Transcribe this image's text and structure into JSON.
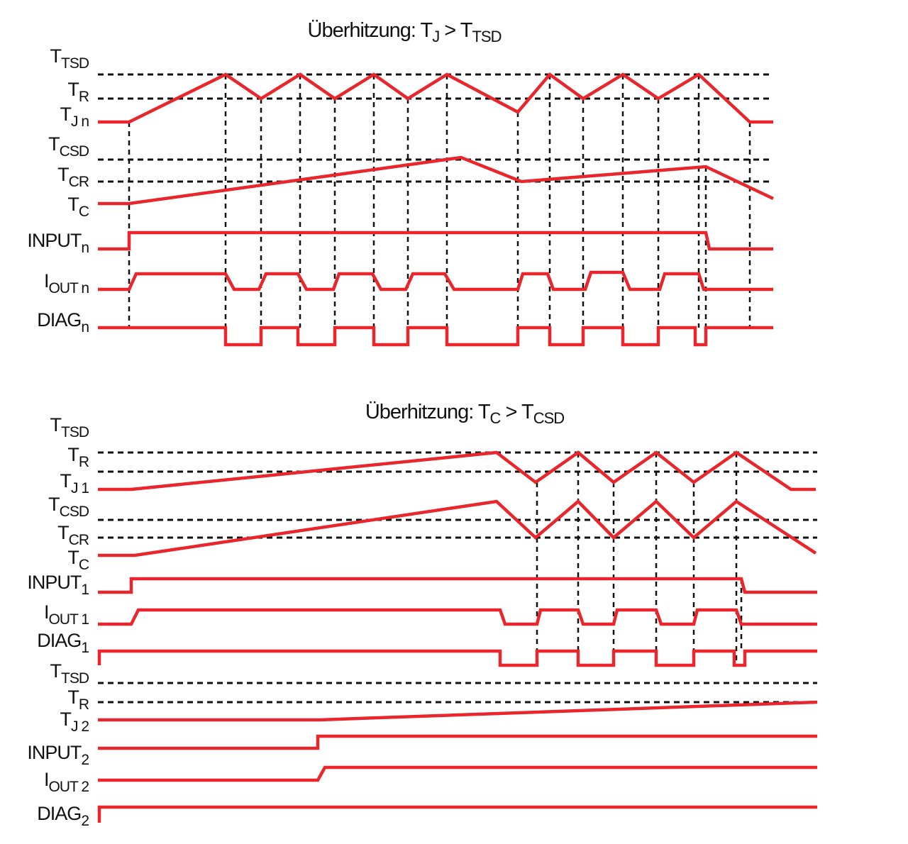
{
  "diagrams": [
    {
      "title": [
        {
          "text": "Überhitzung: T"
        },
        {
          "sub": "J"
        },
        {
          "text": " > T"
        },
        {
          "sub": "TSD"
        }
      ],
      "labels": [
        {
          "main": "T",
          "sub": "TSD"
        },
        {
          "main": "T",
          "sub": "R"
        },
        {
          "main": "T",
          "sub": "J n"
        },
        {
          "main": "T",
          "sub": "CSD"
        },
        {
          "main": "T",
          "sub": "CR"
        },
        {
          "main": "T",
          "sub": "C"
        },
        {
          "main": "INPUT",
          "sub": "n"
        },
        {
          "main": "I",
          "sub": "OUT n"
        },
        {
          "main": "DIAG",
          "sub": "n"
        }
      ]
    },
    {
      "title": [
        {
          "text": "Überhitzung: T"
        },
        {
          "sub": "C"
        },
        {
          "text": " > T"
        },
        {
          "sub": "CSD"
        }
      ],
      "labels": [
        {
          "main": "T",
          "sub": "TSD"
        },
        {
          "main": "T",
          "sub": "R"
        },
        {
          "main": "T",
          "sub": "J 1"
        },
        {
          "main": "T",
          "sub": "CSD"
        },
        {
          "main": "T",
          "sub": "CR"
        },
        {
          "main": "T",
          "sub": "C"
        },
        {
          "main": "INPUT",
          "sub": "1"
        },
        {
          "main": "I",
          "sub": "OUT 1"
        },
        {
          "main": "DIAG",
          "sub": "1"
        },
        {
          "main": "T",
          "sub": "TSD"
        },
        {
          "main": "T",
          "sub": "R"
        },
        {
          "main": "T",
          "sub": "J 2"
        },
        {
          "main": "INPUT",
          "sub": "2"
        },
        {
          "main": "I",
          "sub": "OUT 2"
        },
        {
          "main": "DIAG",
          "sub": "2"
        }
      ]
    }
  ]
}
